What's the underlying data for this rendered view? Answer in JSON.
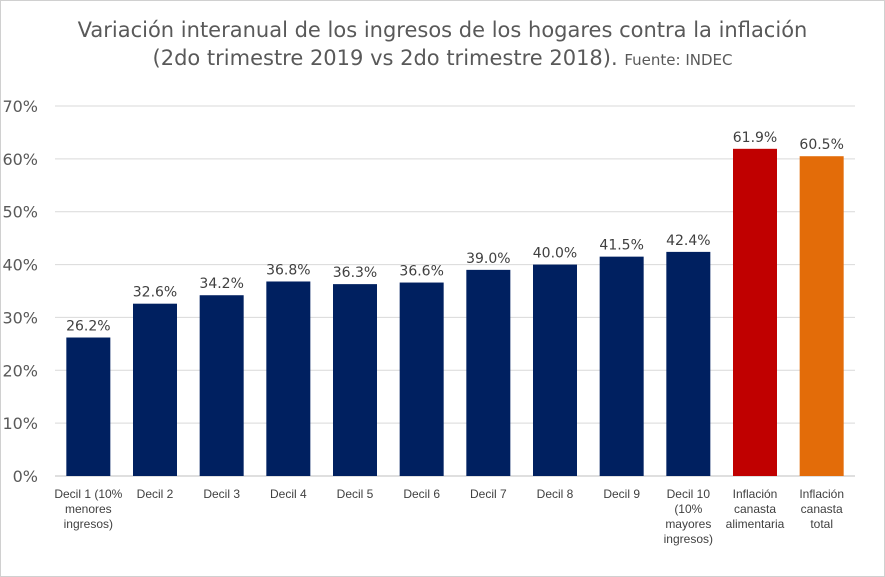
{
  "chart_data": {
    "type": "bar",
    "title_line1": "Variación interanual de los ingresos de los hogares contra la inflación",
    "title_line2": "(2do trimestre 2019 vs 2do trimestre 2018).",
    "source": "Fuente: INDEC",
    "xlabel": "",
    "ylabel": "",
    "ylim": [
      0,
      70
    ],
    "y_ticks": [
      "0%",
      "10%",
      "20%",
      "30%",
      "40%",
      "50%",
      "60%",
      "70%"
    ],
    "grid": true,
    "categories": [
      [
        "Decil 1 (10%",
        "menores",
        "ingresos)"
      ],
      [
        "Decil 2"
      ],
      [
        "Decil 3"
      ],
      [
        "Decil 4"
      ],
      [
        "Decil 5"
      ],
      [
        "Decil 6"
      ],
      [
        "Decil 7"
      ],
      [
        "Decil 8"
      ],
      [
        "Decil 9"
      ],
      [
        "Decil 10",
        "(10%",
        "mayores",
        "ingresos)"
      ],
      [
        "Inflación",
        "canasta",
        "alimentaria"
      ],
      [
        "Inflación",
        "canasta",
        "total"
      ]
    ],
    "values": [
      26.2,
      32.6,
      34.2,
      36.8,
      36.3,
      36.6,
      39.0,
      40.0,
      41.5,
      42.4,
      61.9,
      60.5
    ],
    "data_labels": [
      "26.2%",
      "32.6%",
      "34.2%",
      "36.8%",
      "36.3%",
      "36.6%",
      "39.0%",
      "40.0%",
      "41.5%",
      "42.4%",
      "61.9%",
      "60.5%"
    ],
    "colors": [
      "#002060",
      "#002060",
      "#002060",
      "#002060",
      "#002060",
      "#002060",
      "#002060",
      "#002060",
      "#002060",
      "#002060",
      "#C00000",
      "#E36C09"
    ]
  }
}
